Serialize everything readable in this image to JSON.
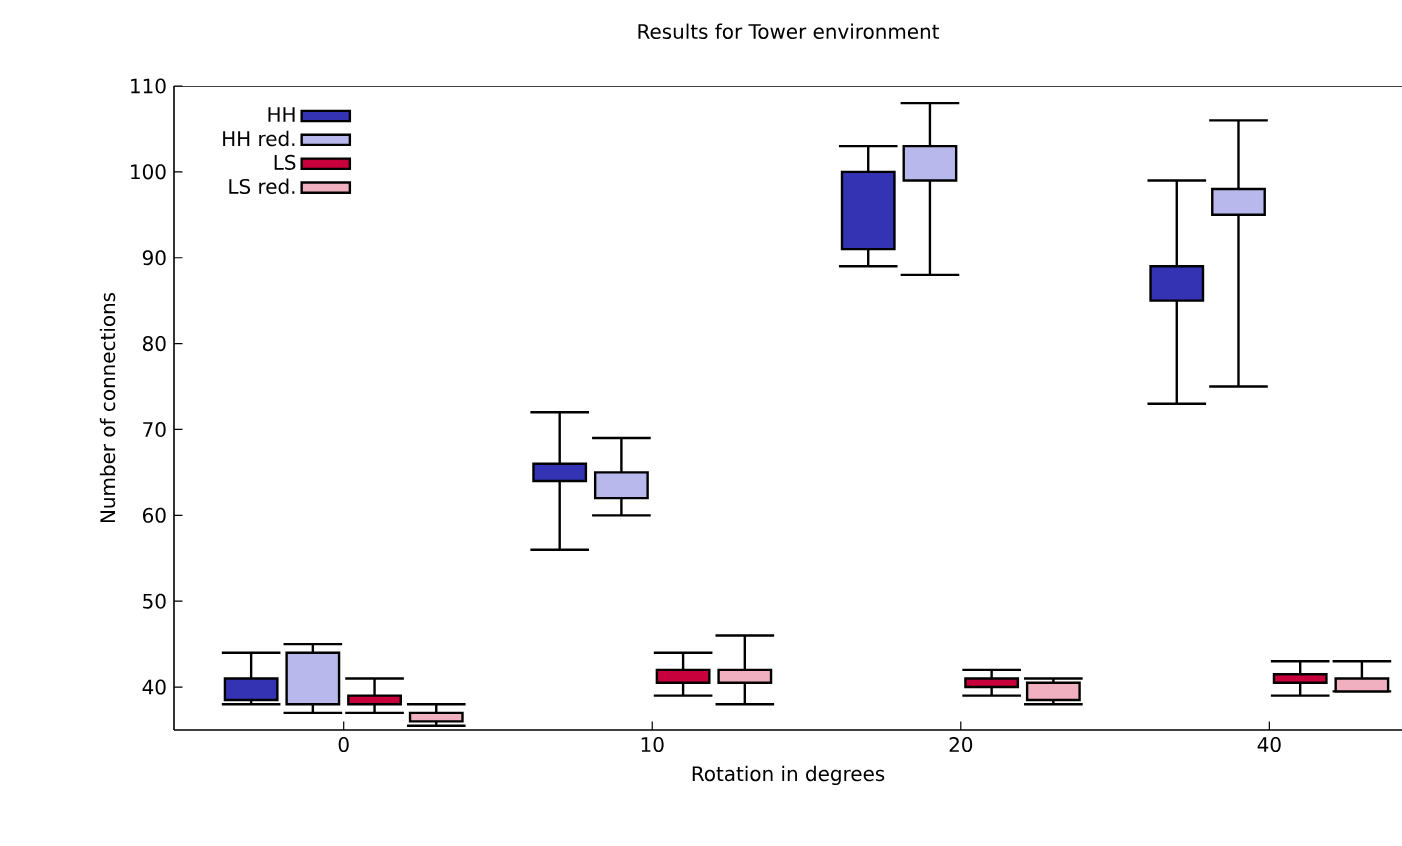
{
  "chart_data": {
    "type": "box",
    "title": "Results for Tower environment",
    "xlabel": "Rotation in degrees",
    "ylabel": "Number of connections",
    "categories": [
      "0",
      "10",
      "20",
      "40"
    ],
    "ylim": [
      35,
      110
    ],
    "yticks": [
      40,
      50,
      60,
      70,
      80,
      90,
      100,
      110
    ],
    "legend": "top left",
    "series": [
      {
        "name": "HH",
        "color": "#3333b3",
        "boxes": [
          {
            "low": 38,
            "q1": 38.5,
            "q3": 41,
            "high": 44
          },
          {
            "low": 56,
            "q1": 64,
            "q3": 66,
            "high": 72
          },
          {
            "low": 89,
            "q1": 91,
            "q3": 100,
            "high": 103
          },
          {
            "low": 73,
            "q1": 85,
            "q3": 89,
            "high": 99
          }
        ]
      },
      {
        "name": "HH red.",
        "color": "#b8b8ec",
        "boxes": [
          {
            "low": 37,
            "q1": 38,
            "q3": 44,
            "high": 45
          },
          {
            "low": 60,
            "q1": 62,
            "q3": 65,
            "high": 69
          },
          {
            "low": 88,
            "q1": 99,
            "q3": 103,
            "high": 108
          },
          {
            "low": 75,
            "q1": 95,
            "q3": 98,
            "high": 106
          }
        ]
      },
      {
        "name": "LS",
        "color": "#c8003c",
        "boxes": [
          {
            "low": 37,
            "q1": 38,
            "q3": 39,
            "high": 41
          },
          {
            "low": 39,
            "q1": 40.5,
            "q3": 42,
            "high": 44
          },
          {
            "low": 39,
            "q1": 40,
            "q3": 41,
            "high": 42
          },
          {
            "low": 39,
            "q1": 40.5,
            "q3": 41.5,
            "high": 43
          }
        ]
      },
      {
        "name": "LS red.",
        "color": "#f0b0c0",
        "boxes": [
          {
            "low": 35.5,
            "q1": 36,
            "q3": 37,
            "high": 38
          },
          {
            "low": 38,
            "q1": 40.5,
            "q3": 42,
            "high": 46
          },
          {
            "low": 38,
            "q1": 38.5,
            "q3": 40.5,
            "high": 41
          },
          {
            "low": 39.5,
            "q1": 39.5,
            "q3": 41,
            "high": 43
          }
        ]
      }
    ]
  }
}
